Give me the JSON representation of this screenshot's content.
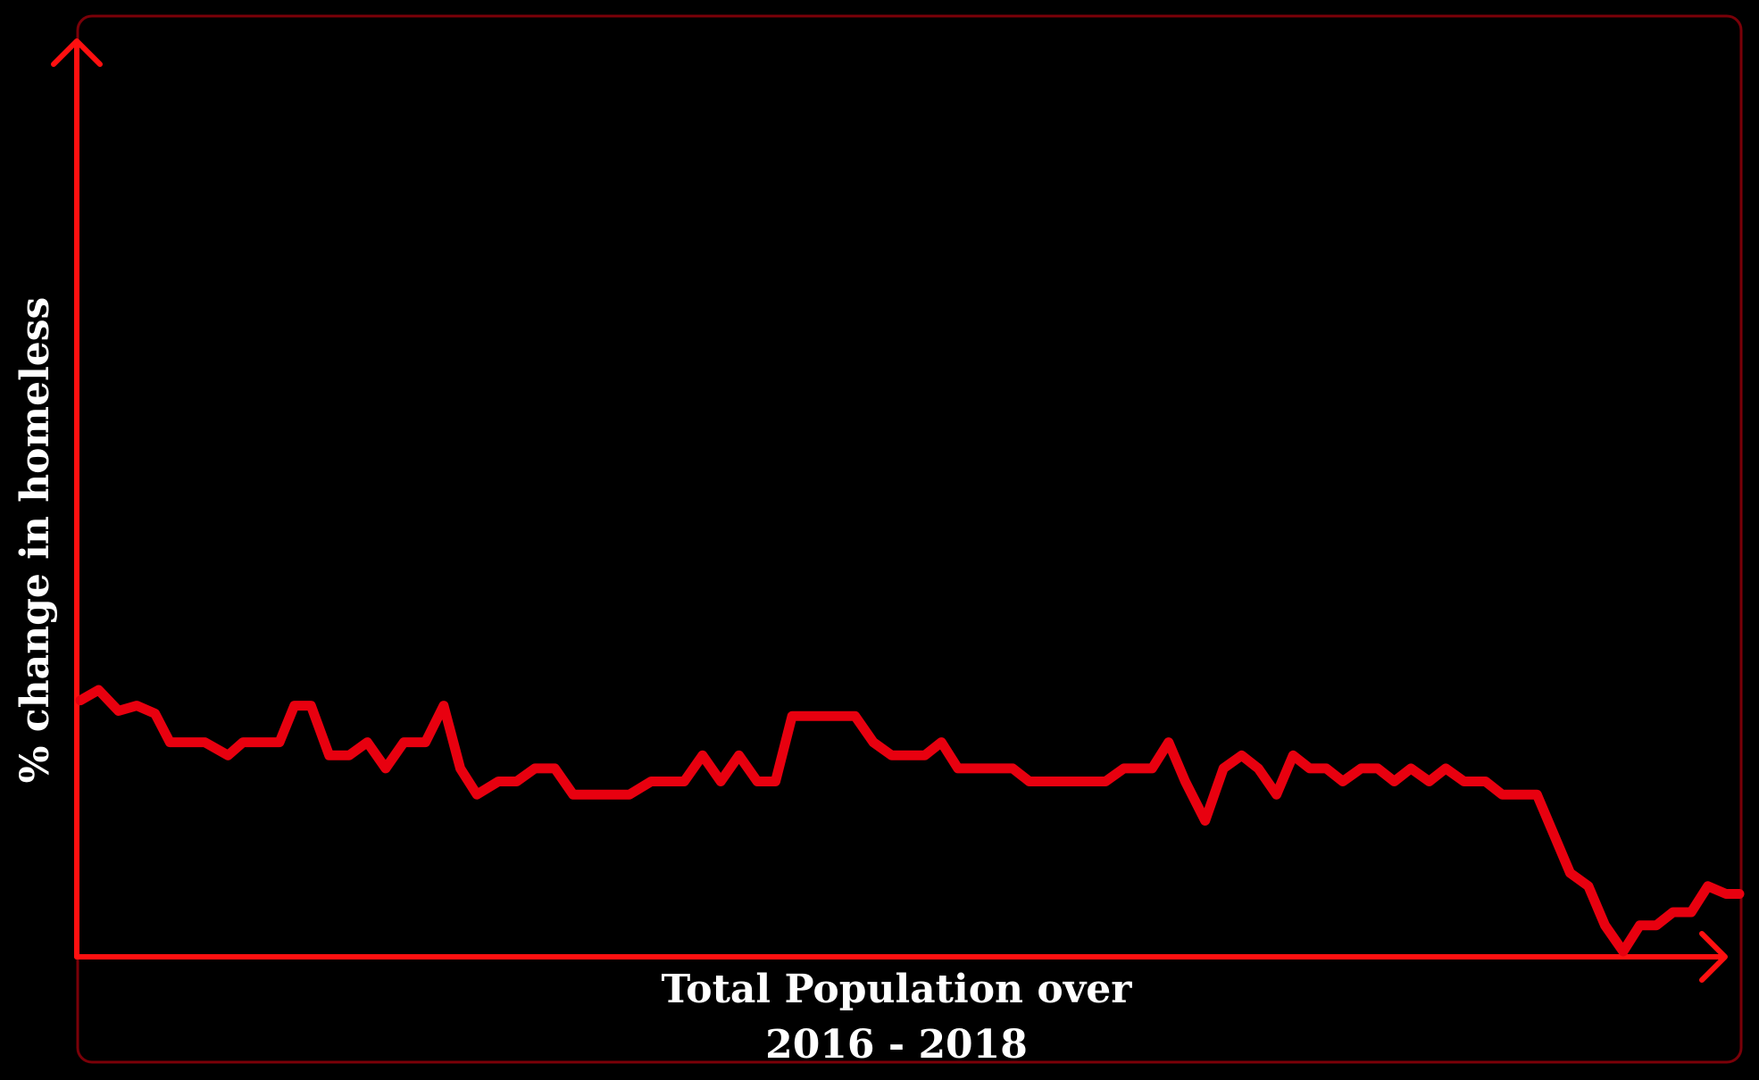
{
  "chart_data": {
    "type": "line",
    "xlabel_line1": "Total Population over",
    "xlabel_line2": "2016 - 2018",
    "ylabel": "% change in homeless",
    "grid": false,
    "legend": "none",
    "ticks_shown": false,
    "xlim": [
      0,
      100
    ],
    "ylim": [
      0,
      100
    ],
    "colors": {
      "background": "#000000",
      "line": "#e8000f",
      "axes": "#ff1010",
      "frame": "#7a0008",
      "text": "#ffffff"
    },
    "series": [
      {
        "points": [
          [
            0,
            48
          ],
          [
            1.1,
            50
          ],
          [
            2.3,
            46
          ],
          [
            3.4,
            47
          ],
          [
            4.5,
            45.5
          ],
          [
            5.4,
            40
          ],
          [
            7.5,
            40
          ],
          [
            8.9,
            37.5
          ],
          [
            9.8,
            40
          ],
          [
            12,
            40
          ],
          [
            12.9,
            47
          ],
          [
            13.9,
            47
          ],
          [
            15,
            37.5
          ],
          [
            16.2,
            37.5
          ],
          [
            17.3,
            40
          ],
          [
            18.4,
            35
          ],
          [
            19.5,
            40
          ],
          [
            20.8,
            40
          ],
          [
            21.9,
            47
          ],
          [
            22.9,
            35
          ],
          [
            23.9,
            30
          ],
          [
            25.2,
            32.5
          ],
          [
            26.3,
            32.5
          ],
          [
            27.4,
            35
          ],
          [
            28.6,
            35
          ],
          [
            29.7,
            30
          ],
          [
            33.1,
            30
          ],
          [
            34.4,
            32.5
          ],
          [
            36.4,
            32.5
          ],
          [
            37.5,
            37.5
          ],
          [
            38.6,
            32.5
          ],
          [
            39.7,
            37.5
          ],
          [
            40.8,
            32.5
          ],
          [
            41.9,
            32.5
          ],
          [
            42.9,
            45
          ],
          [
            46.7,
            45
          ],
          [
            47.8,
            40
          ],
          [
            48.9,
            37.5
          ],
          [
            50.9,
            37.5
          ],
          [
            51.9,
            40
          ],
          [
            52.9,
            35
          ],
          [
            56.2,
            35
          ],
          [
            57.2,
            32.5
          ],
          [
            61.8,
            32.5
          ],
          [
            62.9,
            35
          ],
          [
            64.6,
            35
          ],
          [
            65.6,
            40
          ],
          [
            66.6,
            32.5
          ],
          [
            67.8,
            25
          ],
          [
            68.9,
            35
          ],
          [
            70,
            37.5
          ],
          [
            71,
            35
          ],
          [
            72.1,
            30
          ],
          [
            73.1,
            37.5
          ],
          [
            74.1,
            35
          ],
          [
            75.1,
            35
          ],
          [
            76.1,
            32.5
          ],
          [
            77.2,
            35
          ],
          [
            78.2,
            35
          ],
          [
            79.2,
            32.5
          ],
          [
            80.2,
            35
          ],
          [
            81.3,
            32.5
          ],
          [
            82.3,
            35
          ],
          [
            83.4,
            32.5
          ],
          [
            84.7,
            32.5
          ],
          [
            85.7,
            30
          ],
          [
            87.8,
            30
          ],
          [
            88.8,
            22.5
          ],
          [
            89.8,
            15
          ],
          [
            90.9,
            12.5
          ],
          [
            91.9,
            5
          ],
          [
            93,
            0
          ],
          [
            94,
            5
          ],
          [
            95,
            5
          ],
          [
            96,
            7.5
          ],
          [
            97.1,
            7.5
          ],
          [
            98.1,
            12.5
          ],
          [
            99.2,
            11
          ],
          [
            100,
            11
          ]
        ]
      }
    ]
  }
}
